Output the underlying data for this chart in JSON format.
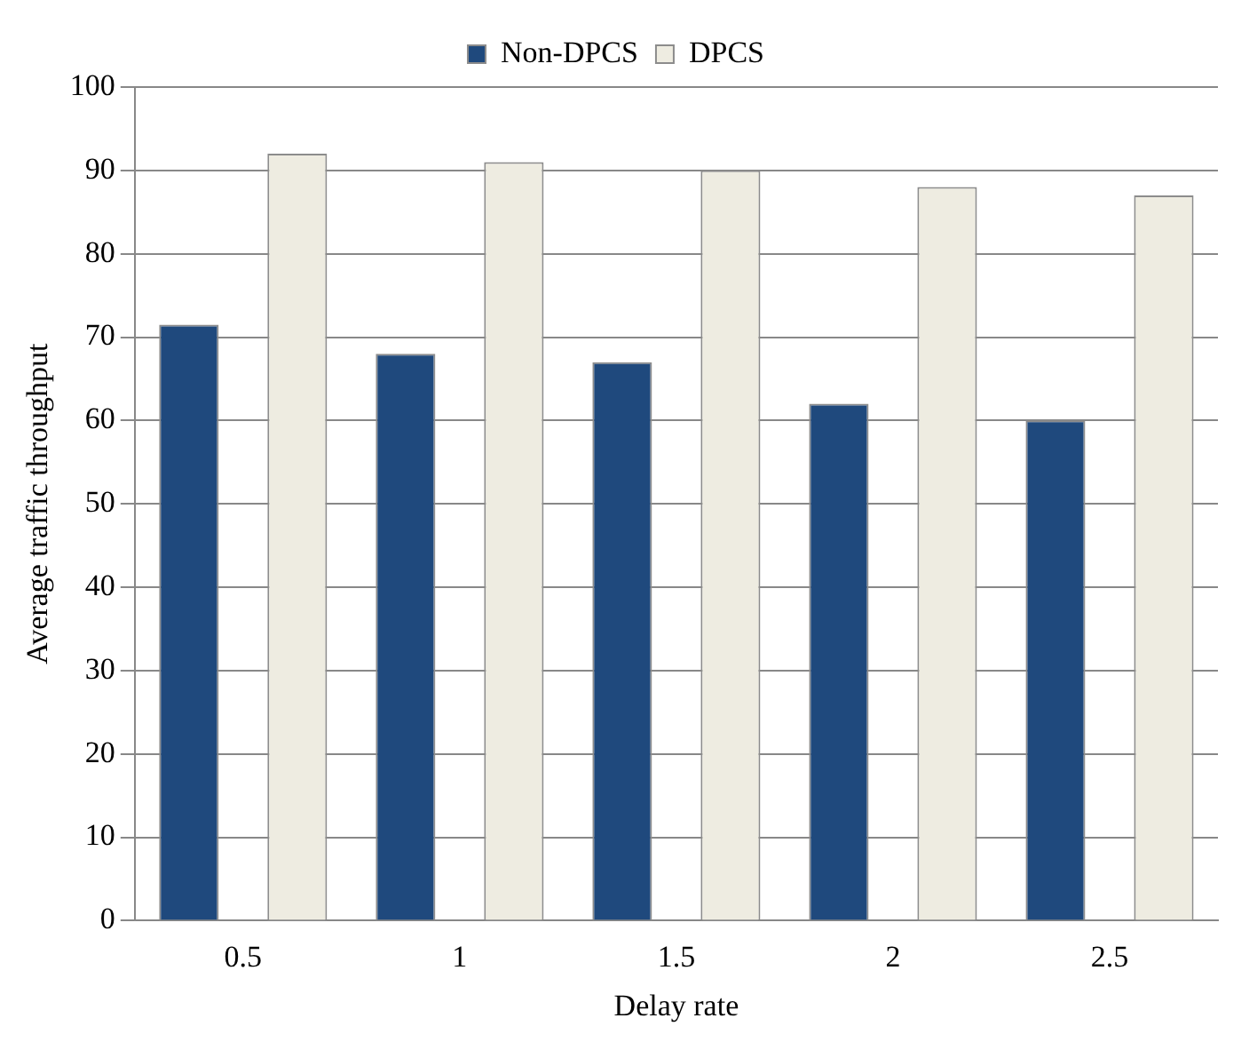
{
  "chart_data": {
    "type": "bar",
    "xlabel": "Delay rate",
    "ylabel": "Average traffic throughput",
    "categories": [
      "0.5",
      "1",
      "1.5",
      "2",
      "2.5"
    ],
    "series": [
      {
        "name": "Non-DPCS",
        "color": "#1f497d",
        "values": [
          71.5,
          68,
          67,
          62,
          60
        ]
      },
      {
        "name": "DPCS",
        "color": "#eeece1",
        "values": [
          92,
          91,
          90,
          88,
          87
        ]
      }
    ],
    "ylim": [
      0,
      100
    ],
    "yticks": [
      0,
      10,
      20,
      30,
      40,
      50,
      60,
      70,
      80,
      90,
      100
    ],
    "grid": "y",
    "legend": "top"
  }
}
